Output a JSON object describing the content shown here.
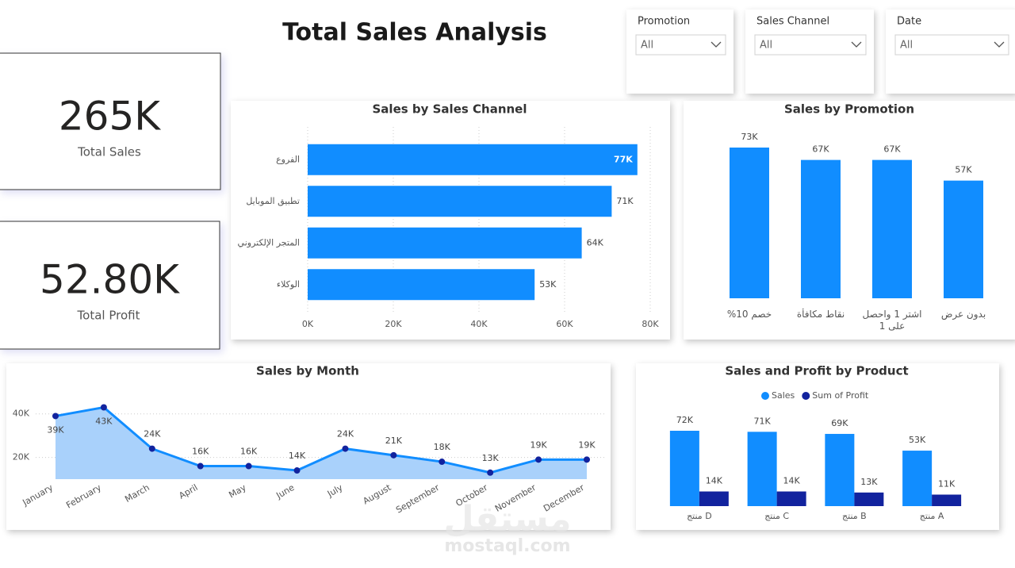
{
  "title": "Total Sales Analysis",
  "cards": [
    {
      "value": "265K",
      "label": "Total Sales"
    },
    {
      "value": "52.80K",
      "label": "Total Profit"
    }
  ],
  "slicers": [
    {
      "label": "Promotion",
      "value": "All"
    },
    {
      "label": "Sales Channel",
      "value": "All"
    },
    {
      "label": "Date",
      "value": "All"
    }
  ],
  "watermark": [
    "مستقل",
    "mostaql.com"
  ],
  "chart_data": [
    {
      "type": "hbar",
      "title": "Sales by Sales Channel",
      "categories": [
        "الفروع",
        "تطبيق الموبايل",
        "المتجر الإلكتروني",
        "الوكلاء"
      ],
      "values": [
        77000,
        71000,
        64000,
        53000
      ],
      "value_labels": [
        "77K",
        "71K",
        "64K",
        "53K"
      ],
      "color": "#118dff",
      "xlim": [
        0,
        80000
      ],
      "xticks": [
        {
          "value": 0,
          "label": "0K"
        },
        {
          "value": 20000,
          "label": "20K"
        },
        {
          "value": 40000,
          "label": "40K"
        },
        {
          "value": 60000,
          "label": "60K"
        },
        {
          "value": 80000,
          "label": "80K"
        }
      ],
      "grid": true
    },
    {
      "type": "bar",
      "title": "Sales by Promotion",
      "categories": [
        "خصم 10%",
        "نقاط مكافأة",
        "اشتر 1 واحصل على 1",
        "بدون عرض"
      ],
      "values": [
        73000,
        67000,
        67000,
        57000
      ],
      "value_labels": [
        "73K",
        "67K",
        "67K",
        "57K"
      ],
      "color": "#118dff"
    },
    {
      "type": "area",
      "title": "Sales by Month",
      "categories": [
        "January",
        "February",
        "March",
        "April",
        "May",
        "June",
        "July",
        "August",
        "September",
        "October",
        "November",
        "December"
      ],
      "values": [
        39000,
        43000,
        24000,
        16000,
        16000,
        14000,
        24000,
        21000,
        18000,
        13000,
        19000,
        19000
      ],
      "value_labels": [
        "39K",
        "43K",
        "24K",
        "16K",
        "16K",
        "14K",
        "24K",
        "21K",
        "18K",
        "13K",
        "19K",
        "19K"
      ],
      "color": "#118dff",
      "marker_color": "#12239e",
      "fill_color": "#a9d1fb",
      "ylim": [
        10000,
        45000
      ],
      "yticks": [
        {
          "value": 20000,
          "label": "20K"
        },
        {
          "value": 40000,
          "label": "40K"
        }
      ],
      "grid": true
    },
    {
      "type": "grouped_bar",
      "title": "Sales and Profit by Product",
      "categories": [
        "منتج D",
        "منتج C",
        "منتج B",
        "منتج A"
      ],
      "legend": "top",
      "series": [
        {
          "name": "Sales",
          "color": "#118dff",
          "values": [
            72000,
            71000,
            69000,
            53000
          ],
          "value_labels": [
            "72K",
            "71K",
            "69K",
            "53K"
          ]
        },
        {
          "name": "Sum of Profit",
          "color": "#12239e",
          "values": [
            14000,
            14000,
            13000,
            11000
          ],
          "value_labels": [
            "14K",
            "14K",
            "13K",
            "11K"
          ]
        }
      ]
    }
  ]
}
